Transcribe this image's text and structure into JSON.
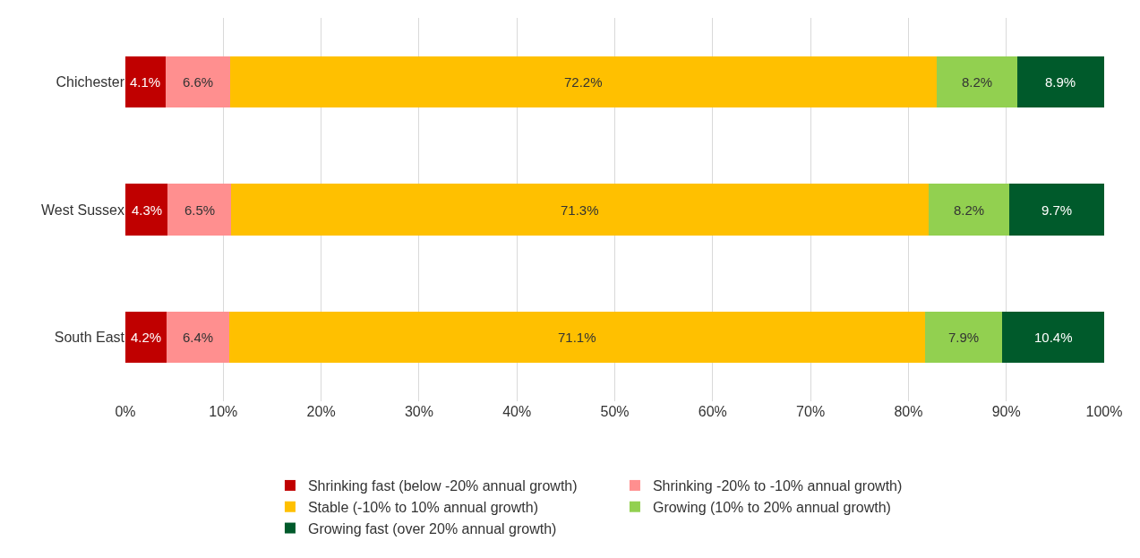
{
  "chart_data": {
    "type": "bar",
    "orientation": "horizontal",
    "stacked": true,
    "categories": [
      "Chichester",
      "West Sussex",
      "South East"
    ],
    "series": [
      {
        "name": "Shrinking fast (below -20% annual growth)",
        "color": "#c00000",
        "values": [
          4.1,
          4.3,
          4.2
        ],
        "value_labels": [
          "4.1%",
          "4.3%",
          "4.2%"
        ]
      },
      {
        "name": "Shrinking -20% to -10% annual growth)",
        "color": "#ff8f8f",
        "values": [
          6.6,
          6.5,
          6.4
        ],
        "value_labels": [
          "6.6%",
          "6.5%",
          "6.4%"
        ]
      },
      {
        "name": "Stable (-10% to 10% annual growth)",
        "color": "#ffc000",
        "values": [
          72.2,
          71.3,
          71.1
        ],
        "value_labels": [
          "72.2%",
          "71.3%",
          "71.1%"
        ]
      },
      {
        "name": "Growing (10% to 20% annual growth)",
        "color": "#92d050",
        "values": [
          8.2,
          8.2,
          7.9
        ],
        "value_labels": [
          "8.2%",
          "8.2%",
          "7.9%"
        ]
      },
      {
        "name": "Growing fast (over 20% annual growth)",
        "color": "#005a2b",
        "values": [
          8.9,
          9.7,
          10.4
        ],
        "value_labels": [
          "8.9%",
          "9.7%",
          "10.4%"
        ]
      }
    ],
    "xlim": [
      0,
      100
    ],
    "xticks": [
      {
        "value": 0,
        "label": "0%"
      },
      {
        "value": 10,
        "label": "10%"
      },
      {
        "value": 20,
        "label": "20%"
      },
      {
        "value": 30,
        "label": "30%"
      },
      {
        "value": 40,
        "label": "40%"
      },
      {
        "value": 50,
        "label": "50%"
      },
      {
        "value": 60,
        "label": "60%"
      },
      {
        "value": 70,
        "label": "70%"
      },
      {
        "value": 80,
        "label": "80%"
      },
      {
        "value": 90,
        "label": "90%"
      },
      {
        "value": 100,
        "label": "100%"
      }
    ],
    "grid": "x",
    "legend": "bottom"
  }
}
